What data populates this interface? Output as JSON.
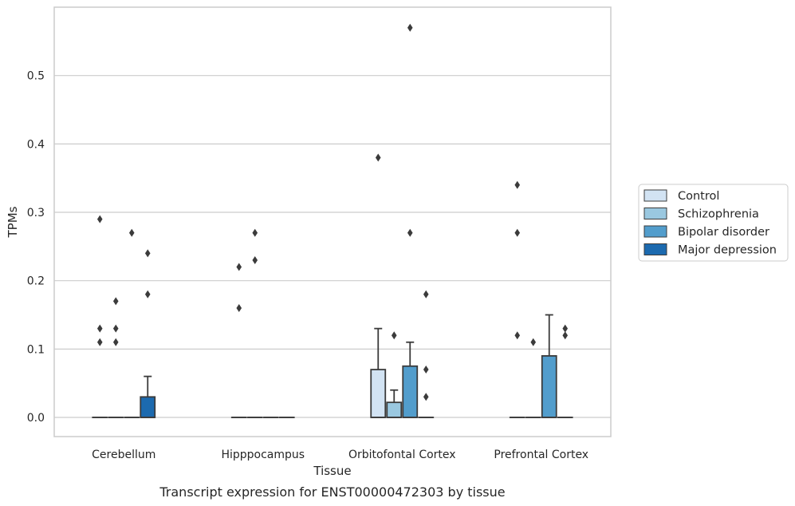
{
  "chart_data": {
    "type": "box",
    "title": "",
    "xlabel": "Tissue",
    "ylabel": "TPMs",
    "caption": "Transcript expression for ENST00000472303 by tissue",
    "ylim": [
      -0.028,
      0.6
    ],
    "yticks": [
      0.0,
      0.1,
      0.2,
      0.3,
      0.4,
      0.5
    ],
    "ytick_labels": [
      "0.0",
      "0.1",
      "0.2",
      "0.3",
      "0.4",
      "0.5"
    ],
    "grid": "horizontal",
    "legend_position": "right",
    "categories": [
      "Cerebellum",
      "Hipppocampus",
      "Orbitofontal Cortex",
      "Prefrontal Cortex"
    ],
    "series": [
      {
        "name": "Control",
        "color": "#d2e3f3",
        "boxes": [
          {
            "q1": 0,
            "median": 0,
            "q3": 0,
            "whisker_low": 0,
            "whisker_high": 0,
            "outliers": [
              0.11,
              0.13,
              0.29
            ]
          },
          {
            "q1": 0,
            "median": 0,
            "q3": 0,
            "whisker_low": 0,
            "whisker_high": 0,
            "outliers": [
              0.16,
              0.22
            ]
          },
          {
            "q1": 0,
            "median": 0,
            "q3": 0.07,
            "whisker_low": 0,
            "whisker_high": 0.13,
            "outliers": [
              0.38
            ]
          },
          {
            "q1": 0,
            "median": 0,
            "q3": 0,
            "whisker_low": 0,
            "whisker_high": 0,
            "outliers": [
              0.12,
              0.27,
              0.34
            ]
          }
        ]
      },
      {
        "name": "Schizophrenia",
        "color": "#9ac8e0",
        "boxes": [
          {
            "q1": 0,
            "median": 0,
            "q3": 0,
            "whisker_low": 0,
            "whisker_high": 0,
            "outliers": [
              0.11,
              0.13,
              0.17
            ]
          },
          {
            "q1": 0,
            "median": 0,
            "q3": 0,
            "whisker_low": 0,
            "whisker_high": 0,
            "outliers": [
              0.23,
              0.27
            ]
          },
          {
            "q1": 0,
            "median": 0,
            "q3": 0.022,
            "whisker_low": 0,
            "whisker_high": 0.04,
            "outliers": [
              0.12
            ]
          },
          {
            "q1": 0,
            "median": 0,
            "q3": 0,
            "whisker_low": 0,
            "whisker_high": 0,
            "outliers": [
              0.11
            ]
          }
        ]
      },
      {
        "name": "Bipolar disorder",
        "color": "#529dcc",
        "boxes": [
          {
            "q1": 0,
            "median": 0,
            "q3": 0,
            "whisker_low": 0,
            "whisker_high": 0,
            "outliers": [
              0.27
            ]
          },
          {
            "q1": 0,
            "median": 0,
            "q3": 0,
            "whisker_low": 0,
            "whisker_high": 0,
            "outliers": []
          },
          {
            "q1": 0,
            "median": 0,
            "q3": 0.075,
            "whisker_low": 0,
            "whisker_high": 0.11,
            "outliers": [
              0.27,
              0.57
            ]
          },
          {
            "q1": 0,
            "median": 0,
            "q3": 0.09,
            "whisker_low": 0,
            "whisker_high": 0.15,
            "outliers": []
          }
        ]
      },
      {
        "name": "Major depression",
        "color": "#1c6aaf",
        "boxes": [
          {
            "q1": 0,
            "median": 0,
            "q3": 0.03,
            "whisker_low": 0,
            "whisker_high": 0.06,
            "outliers": [
              0.18,
              0.24
            ]
          },
          {
            "q1": 0,
            "median": 0,
            "q3": 0,
            "whisker_low": 0,
            "whisker_high": 0,
            "outliers": []
          },
          {
            "q1": 0,
            "median": 0,
            "q3": 0,
            "whisker_low": 0,
            "whisker_high": 0,
            "outliers": [
              0.03,
              0.07,
              0.18
            ]
          },
          {
            "q1": 0,
            "median": 0,
            "q3": 0,
            "whisker_low": 0,
            "whisker_high": 0,
            "outliers": [
              0.12,
              0.13
            ]
          }
        ]
      }
    ]
  }
}
